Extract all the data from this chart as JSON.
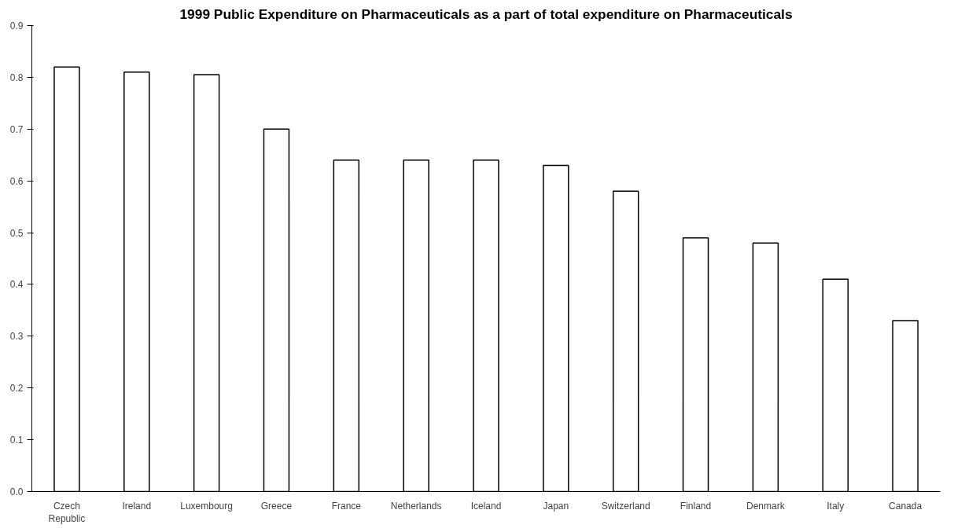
{
  "chart_data": {
    "type": "bar",
    "title": "1999 Public Expenditure on Pharmaceuticals as a part of total expenditure on Pharmaceuticals",
    "categories": [
      "Czech Republic",
      "Ireland",
      "Luxembourg",
      "Greece",
      "France",
      "Netherlands",
      "Iceland",
      "Japan",
      "Switzerland",
      "Finland",
      "Denmark",
      "Italy",
      "Canada"
    ],
    "values": [
      0.82,
      0.81,
      0.805,
      0.7,
      0.64,
      0.64,
      0.64,
      0.63,
      0.58,
      0.49,
      0.48,
      0.41,
      0.33
    ],
    "color": "#ffffff",
    "ylim": [
      0,
      0.9
    ],
    "yticks": [
      {
        "value": 0,
        "label": "0.0"
      },
      {
        "value": 0.1,
        "label": "0.1"
      },
      {
        "value": 0.2,
        "label": "0.2"
      },
      {
        "value": 0.3,
        "label": "0.3"
      },
      {
        "value": 0.4,
        "label": "0.4"
      },
      {
        "value": 0.5,
        "label": "0.5"
      },
      {
        "value": 0.6,
        "label": "0.6"
      },
      {
        "value": 0.7,
        "label": "0.7"
      },
      {
        "value": 0.8,
        "label": "0.8"
      },
      {
        "value": 0.9,
        "label": "0.9"
      }
    ],
    "grid": false
  }
}
